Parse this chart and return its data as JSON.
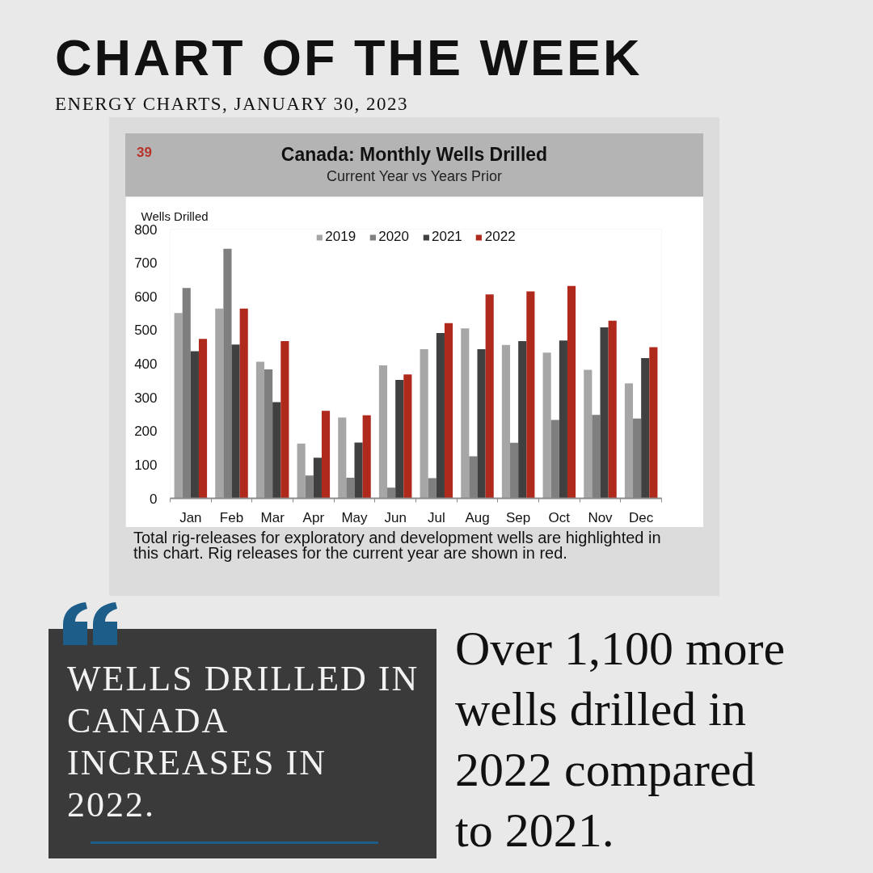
{
  "chart_data": {
    "type": "bar",
    "title": "Canada: Monthly Wells Drilled",
    "subtitle": "Current Year vs Years Prior",
    "ylabel": "Wells Drilled",
    "categories": [
      "Jan",
      "Feb",
      "Mar",
      "Apr",
      "May",
      "Jun",
      "Jul",
      "Aug",
      "Sep",
      "Oct",
      "Nov",
      "Dec"
    ],
    "series": [
      {
        "name": "2019",
        "color": "#a6a6a6",
        "values": [
          551,
          564,
          406,
          163,
          240,
          395,
          443,
          505,
          456,
          433,
          382,
          342
        ]
      },
      {
        "name": "2020",
        "color": "#7f7f7f",
        "values": [
          625,
          742,
          383,
          68,
          61,
          32,
          60,
          125,
          165,
          233,
          248,
          237
        ]
      },
      {
        "name": "2021",
        "color": "#404040",
        "values": [
          437,
          457,
          286,
          121,
          166,
          352,
          491,
          443,
          467,
          469,
          508,
          417
        ]
      },
      {
        "name": "2022",
        "color": "#b0291d",
        "values": [
          474,
          564,
          467,
          260,
          247,
          368,
          521,
          606,
          615,
          631,
          528,
          449
        ]
      }
    ],
    "ylim": [
      0,
      800
    ],
    "yticks": [
      0,
      100,
      200,
      300,
      400,
      500,
      600,
      700,
      800
    ],
    "grid": false,
    "legend": "top",
    "annotations": [
      "CHART OF THE WEEK",
      "ENERGY CHARTS, JANUARY 30, 2023",
      "39",
      "Total rig-releases for exploratory and development wells are highlighted in this chart. Rig releases for the current year are shown in red.",
      "WELLS DRILLED IN CANADA INCREASES IN 2022.",
      "Over 1,100 more wells drilled in 2022 compared to 2021."
    ]
  }
}
